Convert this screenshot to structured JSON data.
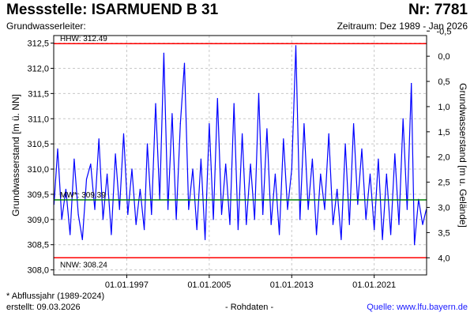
{
  "header": {
    "title": "Messstelle: ISARMUEND B 31",
    "nr": "Nr: 7781",
    "aquifer_label": "Grundwasserleiter:",
    "period": "Zeitraum: Dez 1989 - Jan 2026"
  },
  "footer": {
    "note": "* Abflussjahr (1989-2024)",
    "created": "erstellt:  09.03.2026",
    "raw": "- Rohdaten -",
    "source": "Quelle: www.lfu.bayern.de"
  },
  "colors": {
    "series": "#0000ff",
    "hhw": "#ff0000",
    "nnw": "#ff0000",
    "mw": "#008000",
    "grid": "#c8c8c8"
  },
  "chart_data": {
    "type": "line",
    "ylabel_left": "Grundwasserstand [m ü. NN]",
    "ylabel_right": "Grundwasserstand [m u. Gelände]",
    "x_range": [
      "1989-12-01",
      "2026-01-31"
    ],
    "y_range_left": [
      307.9,
      312.65
    ],
    "y_ticks_left": [
      "312,5",
      "312,0",
      "311,5",
      "311,0",
      "310,5",
      "310,0",
      "309,5",
      "309,0",
      "308,5",
      "308,0"
    ],
    "y_ticks_left_values": [
      312.5,
      312.0,
      311.5,
      311.0,
      310.5,
      310.0,
      309.5,
      309.0,
      308.5,
      308.0
    ],
    "y_ticks_right": [
      "-0,5",
      "0,0",
      "0,5",
      "1,0",
      "1,5",
      "2,0",
      "2,5",
      "3,0",
      "3,5",
      "4,0"
    ],
    "y_ticks_right_values": [
      -0.5,
      0.0,
      0.5,
      1.0,
      1.5,
      2.0,
      2.5,
      3.0,
      3.5,
      4.0
    ],
    "ground_level": 312.24,
    "x_ticks": [
      "01.01.1997",
      "01.01.2005",
      "01.01.2013",
      "01.01.2021"
    ],
    "x_ticks_years": [
      1997,
      2005,
      2013,
      2021
    ],
    "grid": true,
    "reference_lines": [
      {
        "label": "HHW: 312.49",
        "value": 312.49,
        "color_key": "hhw"
      },
      {
        "label": "MW*: 309.39",
        "value": 309.39,
        "color_key": "mw"
      },
      {
        "label": "NNW: 308.24",
        "value": 308.24,
        "color_key": "nnw"
      }
    ],
    "series": [
      {
        "points": [
          [
            1989.95,
            309.3
          ],
          [
            1990.3,
            310.4
          ],
          [
            1990.7,
            309.0
          ],
          [
            1991.1,
            309.6
          ],
          [
            1991.5,
            308.7
          ],
          [
            1991.9,
            310.2
          ],
          [
            1992.3,
            309.1
          ],
          [
            1992.7,
            308.6
          ],
          [
            1993.1,
            309.8
          ],
          [
            1993.5,
            310.1
          ],
          [
            1993.9,
            309.2
          ],
          [
            1994.3,
            310.6
          ],
          [
            1994.7,
            309.0
          ],
          [
            1995.1,
            309.9
          ],
          [
            1995.5,
            308.7
          ],
          [
            1995.9,
            310.3
          ],
          [
            1996.3,
            309.2
          ],
          [
            1996.7,
            310.7
          ],
          [
            1997.1,
            309.1
          ],
          [
            1997.5,
            310.0
          ],
          [
            1997.9,
            308.9
          ],
          [
            1998.3,
            309.6
          ],
          [
            1998.7,
            308.8
          ],
          [
            1999.0,
            310.5
          ],
          [
            1999.4,
            309.1
          ],
          [
            1999.8,
            311.3
          ],
          [
            2000.2,
            309.4
          ],
          [
            2000.6,
            312.3
          ],
          [
            2001.0,
            309.2
          ],
          [
            2001.4,
            311.1
          ],
          [
            2001.8,
            309.0
          ],
          [
            2002.2,
            310.9
          ],
          [
            2002.6,
            312.1
          ],
          [
            2003.0,
            309.2
          ],
          [
            2003.4,
            310.0
          ],
          [
            2003.8,
            308.8
          ],
          [
            2004.2,
            310.2
          ],
          [
            2004.6,
            308.6
          ],
          [
            2005.0,
            310.9
          ],
          [
            2005.4,
            309.0
          ],
          [
            2005.8,
            311.4
          ],
          [
            2006.2,
            309.1
          ],
          [
            2006.6,
            310.1
          ],
          [
            2007.0,
            308.9
          ],
          [
            2007.4,
            311.3
          ],
          [
            2007.8,
            308.8
          ],
          [
            2008.2,
            310.7
          ],
          [
            2008.6,
            308.9
          ],
          [
            2009.0,
            310.1
          ],
          [
            2009.4,
            309.0
          ],
          [
            2009.8,
            311.5
          ],
          [
            2010.2,
            309.1
          ],
          [
            2010.6,
            310.8
          ],
          [
            2011.0,
            308.9
          ],
          [
            2011.4,
            309.9
          ],
          [
            2011.8,
            308.7
          ],
          [
            2012.2,
            310.6
          ],
          [
            2012.6,
            309.2
          ],
          [
            2013.0,
            310.0
          ],
          [
            2013.4,
            312.45
          ],
          [
            2013.8,
            309.0
          ],
          [
            2014.2,
            310.9
          ],
          [
            2014.6,
            309.2
          ],
          [
            2015.0,
            310.2
          ],
          [
            2015.4,
            308.7
          ],
          [
            2015.8,
            309.9
          ],
          [
            2016.2,
            309.2
          ],
          [
            2016.6,
            310.7
          ],
          [
            2017.0,
            308.9
          ],
          [
            2017.4,
            309.6
          ],
          [
            2017.8,
            308.6
          ],
          [
            2018.2,
            310.5
          ],
          [
            2018.6,
            308.9
          ],
          [
            2019.0,
            310.9
          ],
          [
            2019.4,
            309.3
          ],
          [
            2019.8,
            310.4
          ],
          [
            2020.2,
            309.0
          ],
          [
            2020.6,
            309.9
          ],
          [
            2021.0,
            308.8
          ],
          [
            2021.4,
            310.2
          ],
          [
            2021.8,
            308.6
          ],
          [
            2022.2,
            309.9
          ],
          [
            2022.6,
            308.7
          ],
          [
            2023.0,
            310.3
          ],
          [
            2023.4,
            308.9
          ],
          [
            2023.8,
            311.0
          ],
          [
            2024.2,
            309.2
          ],
          [
            2024.6,
            311.7
          ],
          [
            2024.9,
            308.5
          ],
          [
            2025.3,
            309.4
          ],
          [
            2025.7,
            308.9
          ],
          [
            2026.05,
            309.2
          ]
        ]
      }
    ]
  }
}
